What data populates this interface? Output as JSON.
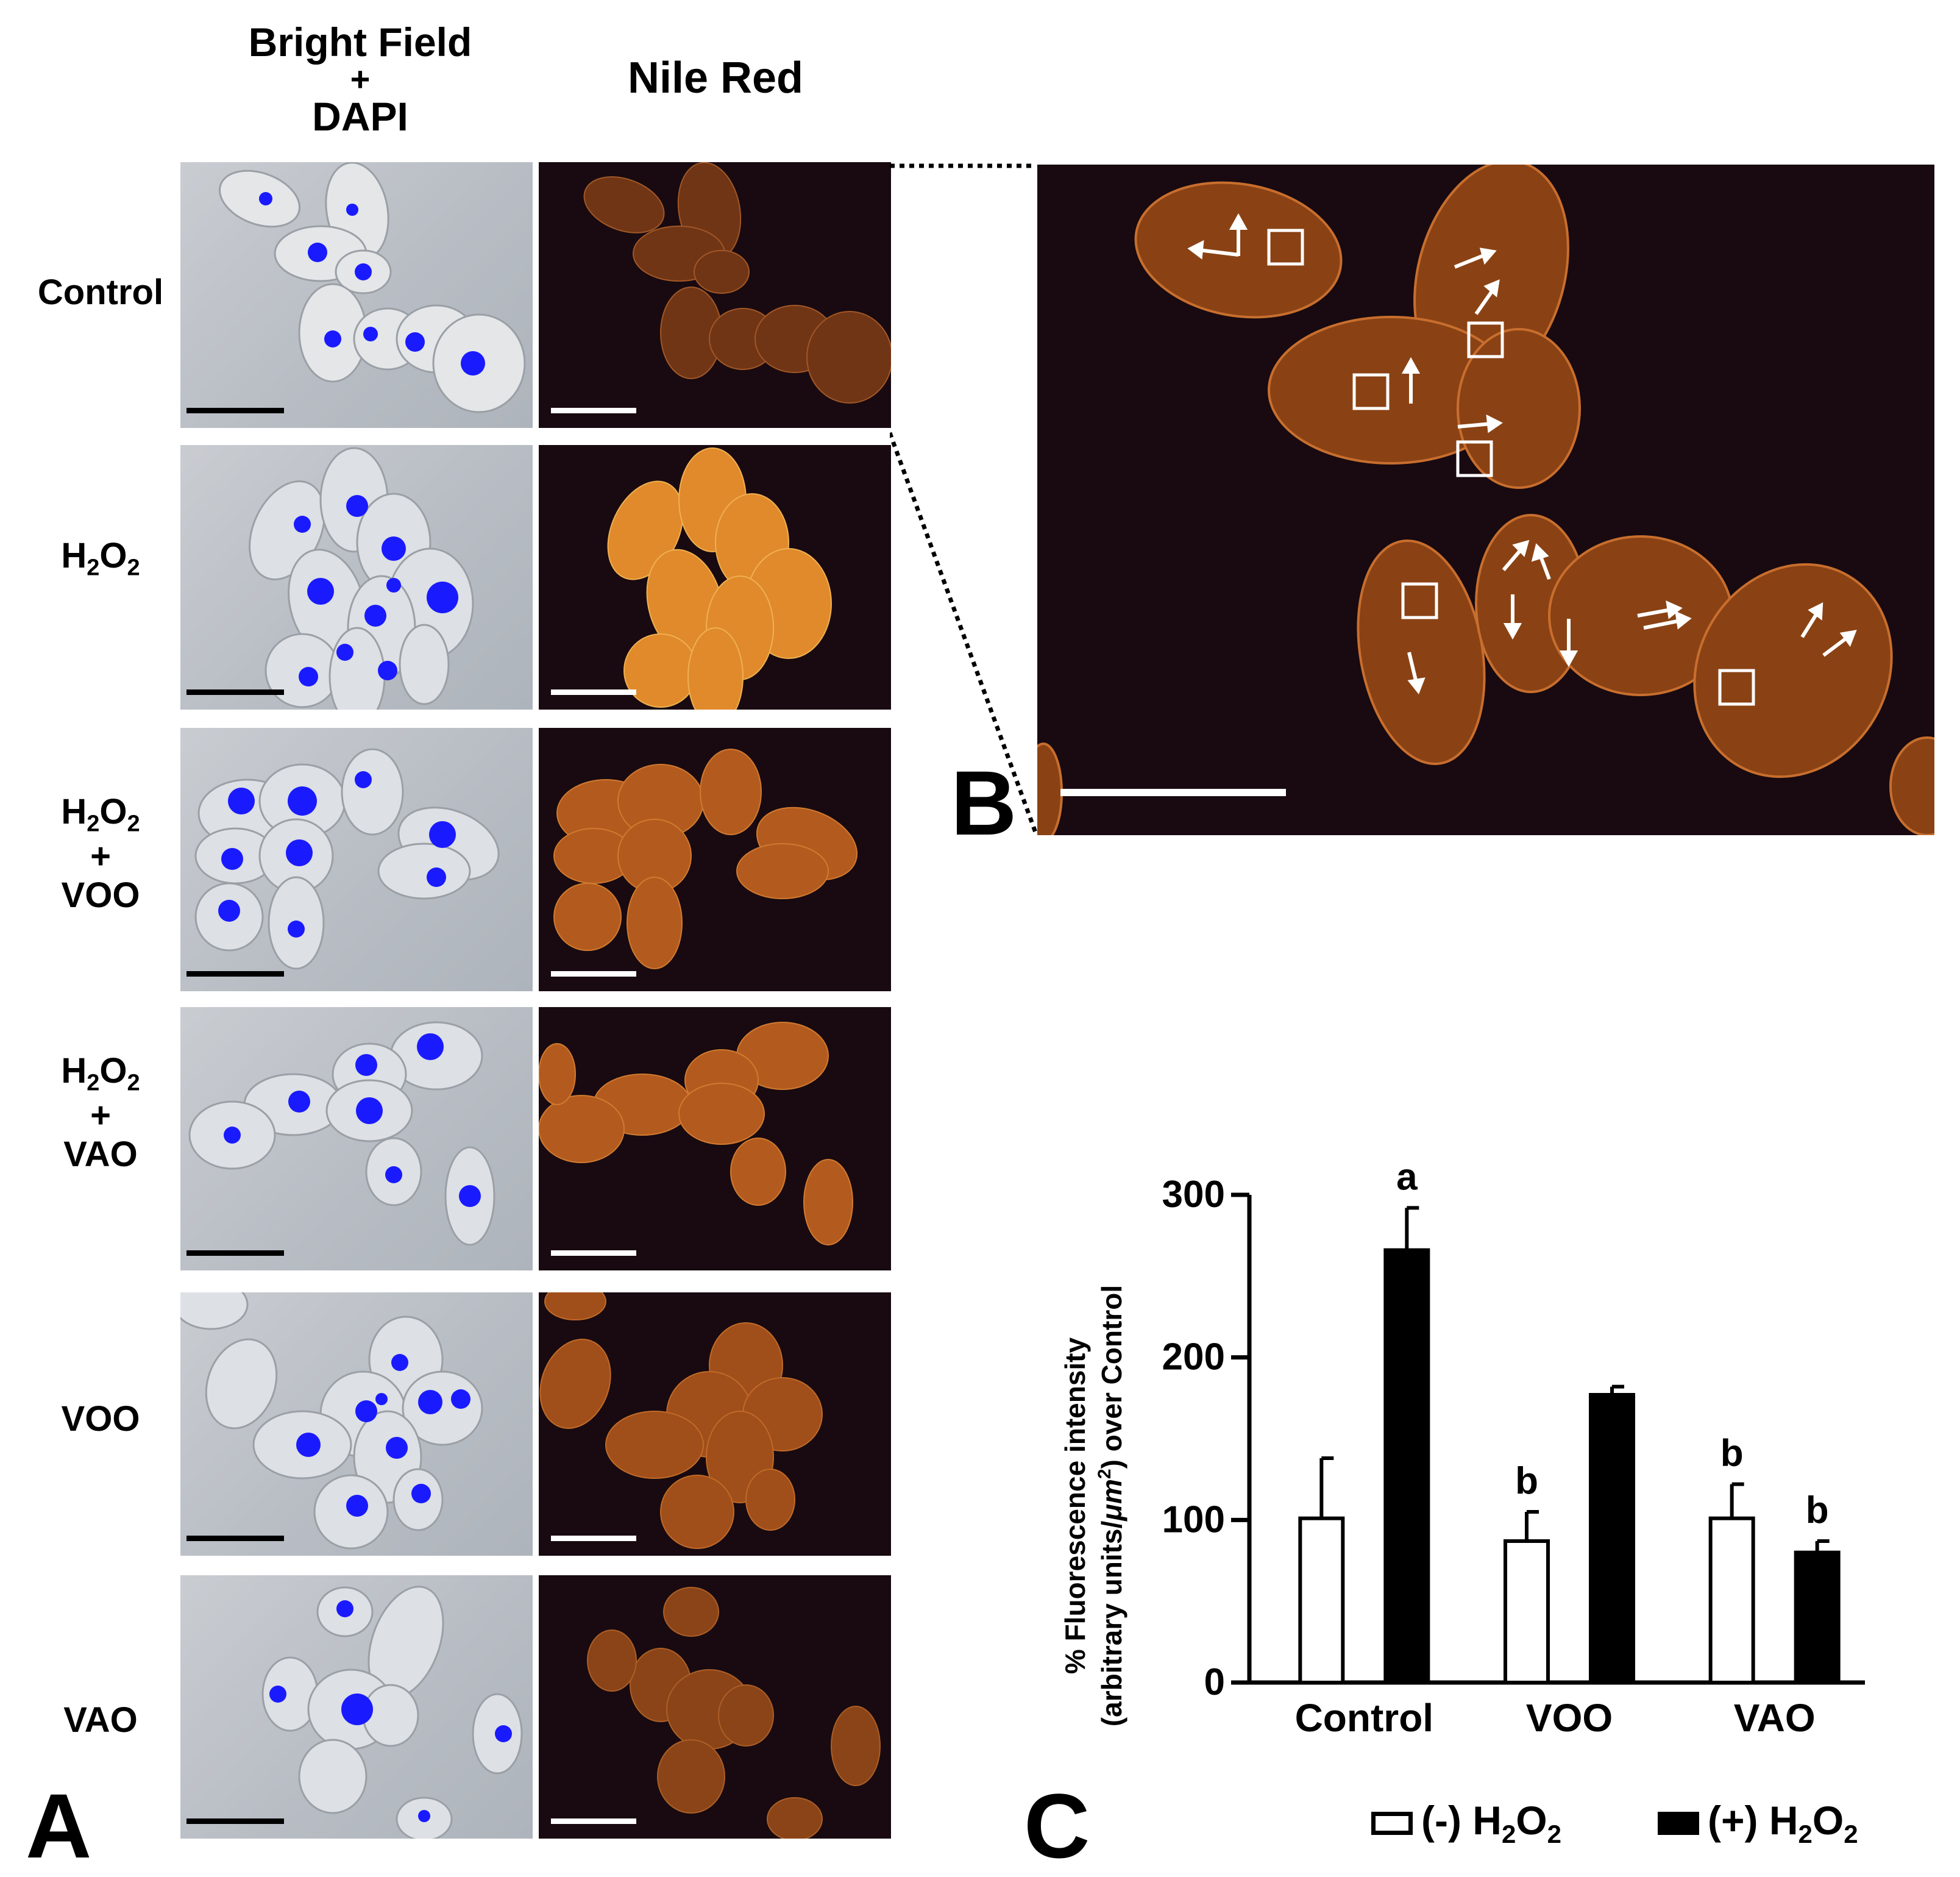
{
  "panel_a": {
    "letter": "A",
    "col_headers": {
      "bright_field_line1": "Bright Field",
      "bright_field_line2": "+",
      "bright_field_line3": "DAPI",
      "nile_red": "Nile Red"
    },
    "rows": [
      {
        "line1": "Control"
      },
      {
        "line1": "H",
        "sub1": "2",
        "mid": "O",
        "sub2": "2"
      },
      {
        "line1": "H",
        "sub1": "2",
        "mid": "O",
        "sub2": "2",
        "plus": "+",
        "line3": "VOO"
      },
      {
        "line1": "H",
        "sub1": "2",
        "mid": "O",
        "sub2": "2",
        "plus": "+",
        "line3": "VAO"
      },
      {
        "line1": "VOO"
      },
      {
        "line1": "VAO"
      }
    ]
  },
  "panel_b": {
    "letter": "B"
  },
  "panel_c": {
    "letter": "C",
    "legend": {
      "minus": "(-) H",
      "minus_sub": "2",
      "minus_o": "O",
      "minus_sub2": "2",
      "plus": "(+) H",
      "plus_sub": "2",
      "plus_o": "O",
      "plus_sub2": "2"
    },
    "ylabel_line1": "% Fluorescence intensity",
    "ylabel_line2_pre": "(arbitrary units/",
    "ylabel_unit": "μm",
    "ylabel_sup": "2",
    "ylabel_line2_post": ") over Control"
  },
  "chart_data": {
    "type": "bar",
    "categories": [
      "Control",
      "VOO",
      "VAO"
    ],
    "series": [
      {
        "name": "(-) H2O2",
        "color": "#ffffff",
        "values": [
          101,
          87,
          101
        ],
        "errors": [
          37,
          18,
          21
        ],
        "labels": [
          "",
          "b",
          "b"
        ]
      },
      {
        "name": "(+) H2O2",
        "color": "#000000",
        "values": [
          266,
          177,
          80
        ],
        "errors": [
          26,
          5,
          7
        ],
        "labels": [
          "a",
          "",
          "b"
        ]
      }
    ],
    "ylim": [
      0,
      300
    ],
    "yticks": [
      0,
      100,
      200,
      300
    ],
    "legend": "bottom"
  }
}
